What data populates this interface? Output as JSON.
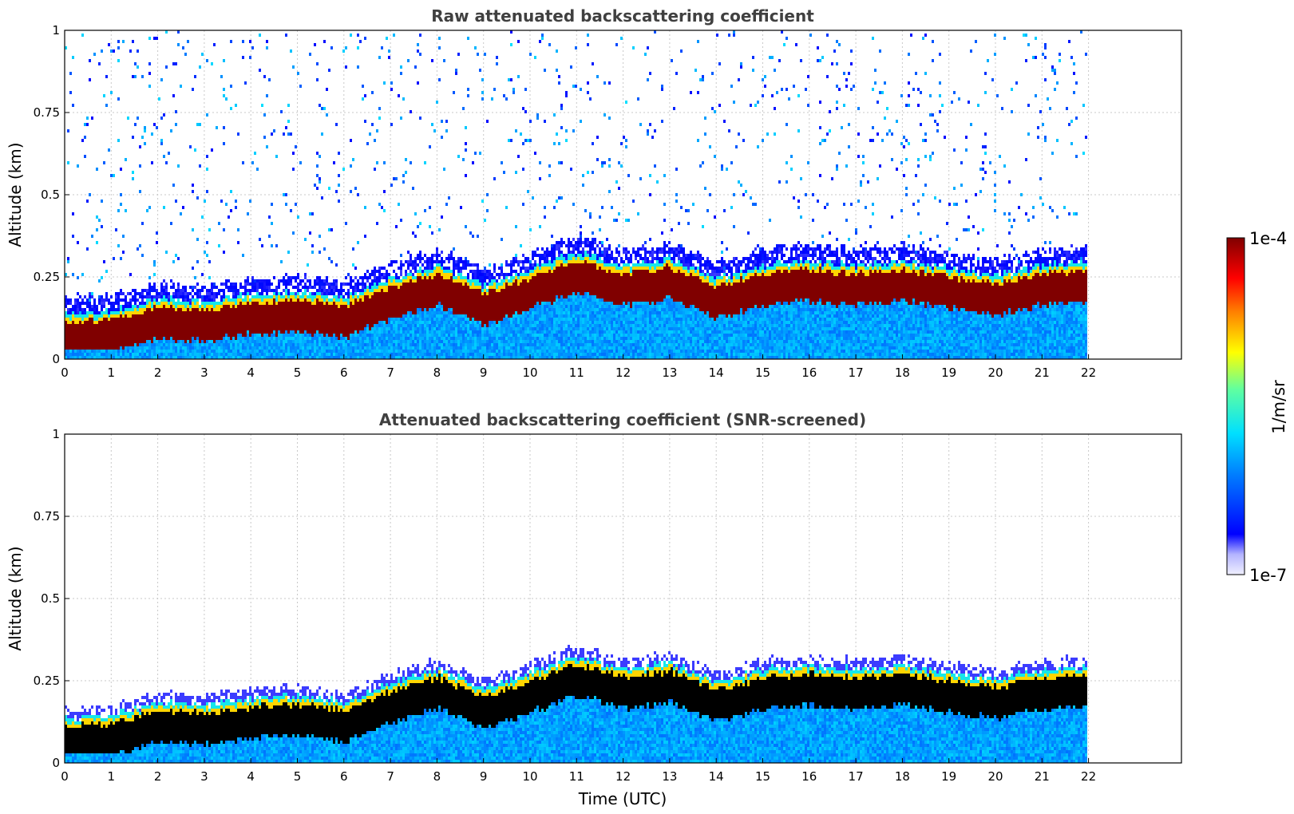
{
  "chart_data": [
    {
      "type": "heatmap",
      "title": "Raw attenuated backscattering coefficient",
      "xlabel": "",
      "ylabel": "Altitude (km)",
      "xlim": [
        0,
        24
      ],
      "ylim": [
        0,
        1
      ],
      "x_ticks": [
        "0",
        "1",
        "2",
        "3",
        "4",
        "5",
        "6",
        "7",
        "8",
        "9",
        "10",
        "11",
        "12",
        "13",
        "14",
        "15",
        "16",
        "17",
        "18",
        "19",
        "20",
        "21",
        "22"
      ],
      "y_ticks": [
        "0",
        "0.25",
        "0.5",
        "0.75",
        "1"
      ],
      "grid": true,
      "data_end_hour": 22,
      "layer_top_km": [
        [
          0,
          0.13
        ],
        [
          1,
          0.14
        ],
        [
          2,
          0.18
        ],
        [
          3,
          0.17
        ],
        [
          4,
          0.19
        ],
        [
          5,
          0.2
        ],
        [
          6,
          0.18
        ],
        [
          7,
          0.24
        ],
        [
          8,
          0.28
        ],
        [
          9,
          0.22
        ],
        [
          10,
          0.27
        ],
        [
          11,
          0.32
        ],
        [
          12,
          0.28
        ],
        [
          13,
          0.3
        ],
        [
          14,
          0.24
        ],
        [
          15,
          0.28
        ],
        [
          16,
          0.29
        ],
        [
          17,
          0.28
        ],
        [
          18,
          0.29
        ],
        [
          19,
          0.27
        ],
        [
          20,
          0.25
        ],
        [
          21,
          0.28
        ],
        [
          22,
          0.29
        ]
      ],
      "screened": false
    },
    {
      "type": "heatmap",
      "title": "Attenuated backscattering coefficient (SNR-screened)",
      "xlabel": "Time (UTC)",
      "ylabel": "Altitude (km)",
      "xlim": [
        0,
        24
      ],
      "ylim": [
        0,
        1
      ],
      "x_ticks": [
        "0",
        "1",
        "2",
        "3",
        "4",
        "5",
        "6",
        "7",
        "8",
        "9",
        "10",
        "11",
        "12",
        "13",
        "14",
        "15",
        "16",
        "17",
        "18",
        "19",
        "20",
        "21",
        "22"
      ],
      "y_ticks": [
        "0",
        "0.25",
        "0.5",
        "0.75",
        "1"
      ],
      "grid": true,
      "data_end_hour": 22,
      "screened": true
    }
  ],
  "colorbar": {
    "label": "1/m/sr",
    "max_label": "1e-4",
    "min_label": "1e-7",
    "scale": "log",
    "colormap": "jet",
    "range": [
      1e-07,
      0.0001
    ]
  }
}
